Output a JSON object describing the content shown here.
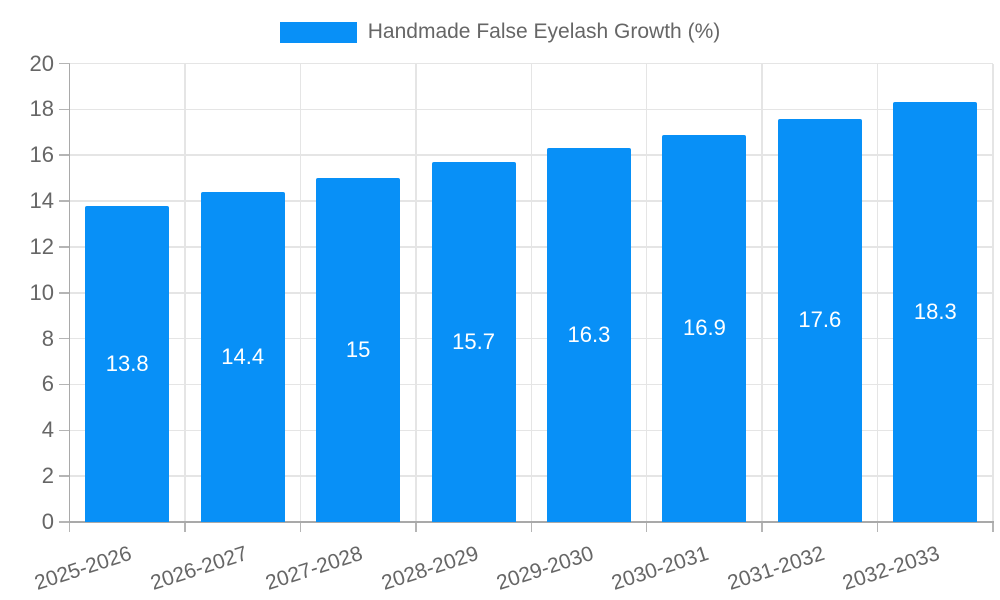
{
  "legend": {
    "label": "Handmade False Eyelash Growth (%)"
  },
  "chart_data": {
    "type": "bar",
    "title": "",
    "categories": [
      "2025-2026",
      "2026-2027",
      "2027-2028",
      "2028-2029",
      "2029-2030",
      "2030-2031",
      "2031-2032",
      "2032-2033"
    ],
    "series": [
      {
        "name": "Handmade False Eyelash Growth (%)",
        "values": [
          13.8,
          14.4,
          15,
          15.7,
          16.3,
          16.9,
          17.6,
          18.3
        ]
      }
    ],
    "value_labels": [
      "13.8",
      "14.4",
      "15",
      "15.7",
      "16.3",
      "16.9",
      "17.6",
      "18.3"
    ],
    "xlabel": "",
    "ylabel": "",
    "ylim": [
      0,
      20
    ],
    "yticks": [
      0,
      2,
      4,
      6,
      8,
      10,
      12,
      14,
      16,
      18,
      20
    ],
    "grid": true,
    "legend_position": "top"
  },
  "colors": {
    "bar": "#0890f7",
    "grid": "#e5e5e5",
    "axis": "#a9a9a9",
    "tick": "#b5b5b5",
    "text": "#666666",
    "value_label": "#ffffff",
    "background": "#ffffff"
  }
}
